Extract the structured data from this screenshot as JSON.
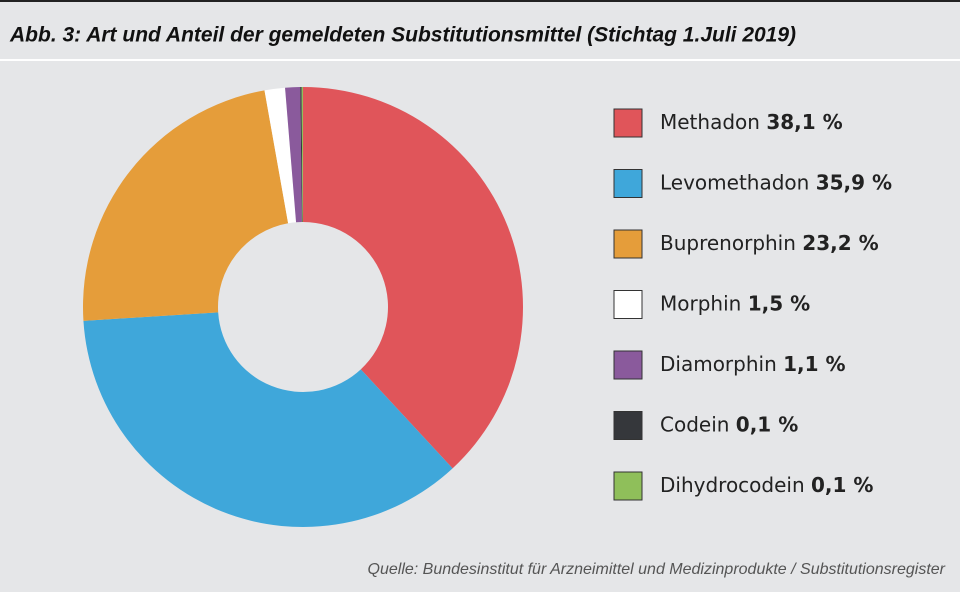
{
  "chart_data": {
    "type": "pie",
    "title": "Abb. 3: Art und Anteil der gemeldeten Substitutionsmittel (Stichtag 1.Juli 2019)",
    "categories": [
      "Methadon",
      "Levomethadon",
      "Buprenorphin",
      "Morphin",
      "Diamorphin",
      "Codein",
      "Dihydrocodein"
    ],
    "values": [
      38.1,
      35.9,
      23.2,
      1.5,
      1.1,
      0.1,
      0.1
    ],
    "value_labels": [
      "38,1 %",
      "35,9 %",
      "23,2 %",
      "1,5 %",
      "1,1 %",
      "0,1 %",
      "0,1 %"
    ],
    "colors": [
      "#e0555a",
      "#3fa7da",
      "#e59d3a",
      "#ffffff",
      "#8a5a9c",
      "#35373b",
      "#8fbf5a"
    ],
    "source": "Quelle: Bundesinstitut für Arzneimittel und Medizinprodukte / Substitutionsregister"
  }
}
